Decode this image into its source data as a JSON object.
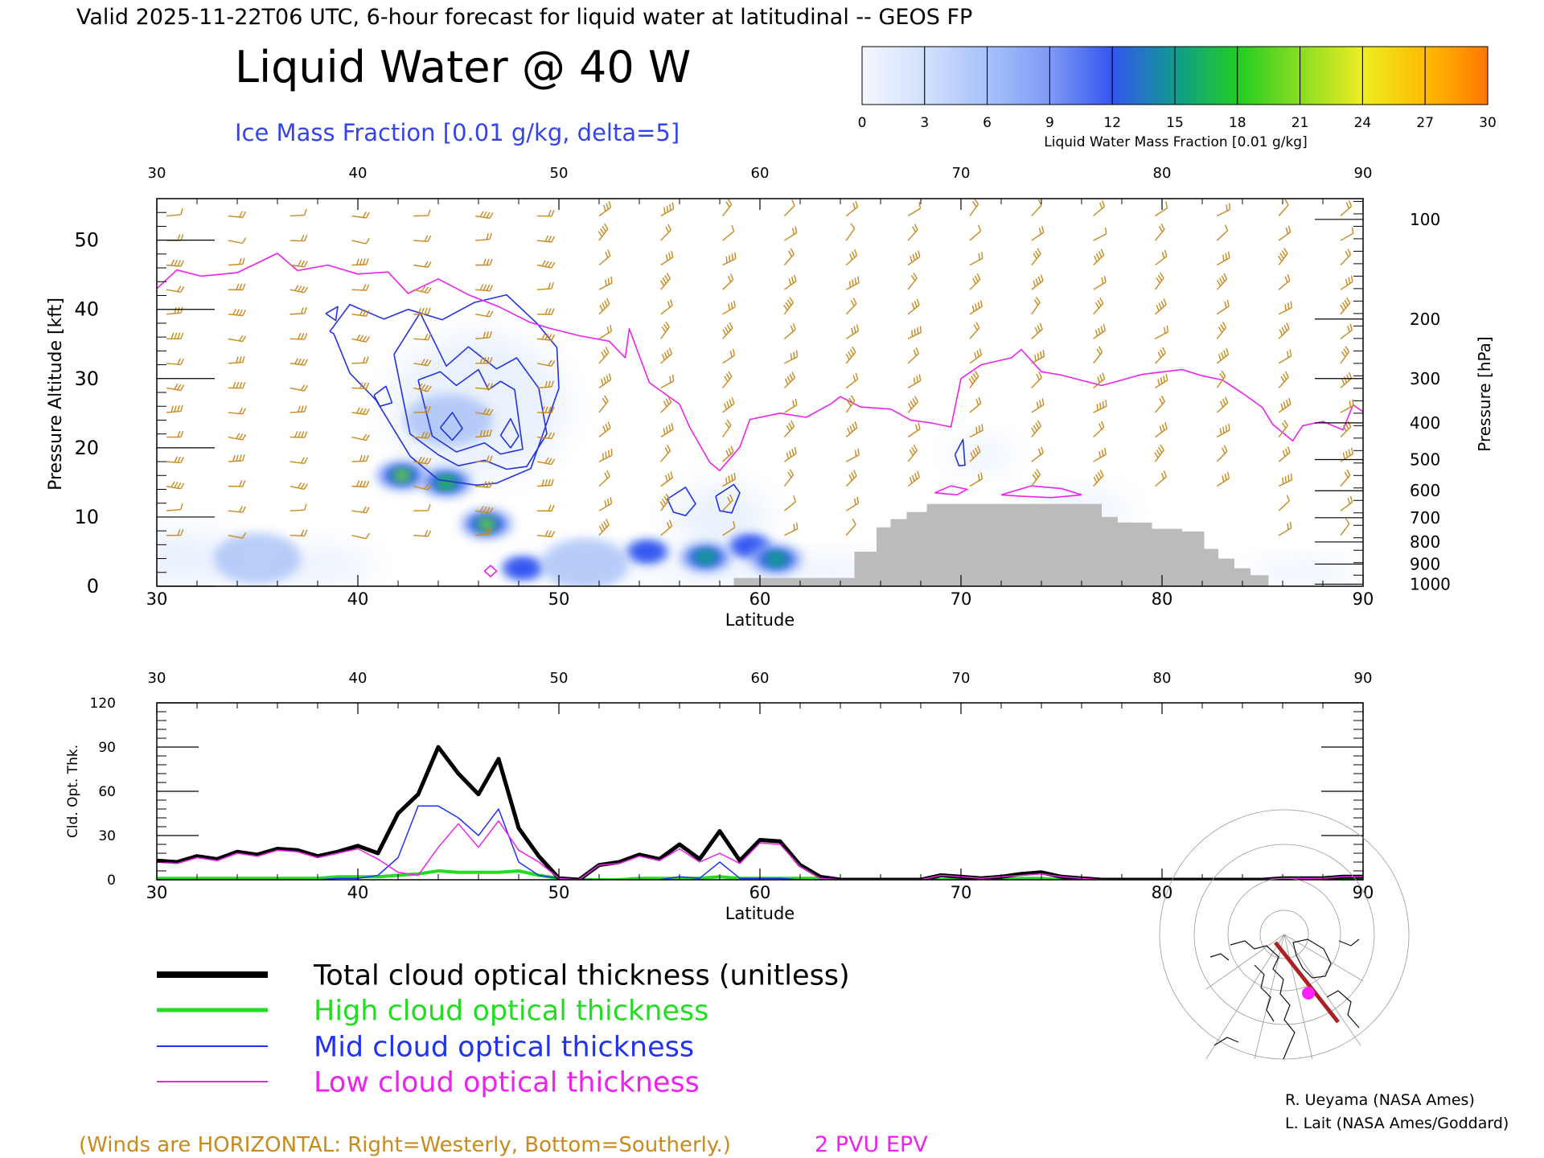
{
  "header": {
    "valid_line": "Valid 2025-11-22T06 UTC, 6-hour forecast for liquid water at latitudinal -- GEOS FP",
    "title": "Liquid Water @ 40 W",
    "subtitle": "Ice Mass Fraction [0.01 g/kg, delta=5]"
  },
  "colorbar": {
    "label": "Liquid Water Mass Fraction [0.01 g/kg]",
    "ticks": [
      "0",
      "3",
      "6",
      "9",
      "12",
      "15",
      "18",
      "21",
      "24",
      "27",
      "30"
    ],
    "colors": [
      "#f4f7ff",
      "#d2e0fb",
      "#a6c2fa",
      "#7f9af6",
      "#3355f0",
      "#119a90",
      "#22cc22",
      "#88dd22",
      "#eeee22",
      "#ffbb00",
      "#ff7700"
    ]
  },
  "chart_data": [
    {
      "type": "heatmap",
      "title": "Liquid Water @ 40 W",
      "xlabel": "Latitude",
      "ylabel": "Pressure Altitude [kft]",
      "y2label": "Pressure [hPa]",
      "xlim": [
        30,
        90
      ],
      "ylim": [
        0,
        56
      ],
      "x_ticks": [
        "30",
        "40",
        "50",
        "60",
        "70",
        "80",
        "90"
      ],
      "y_ticks": [
        "0",
        "10",
        "20",
        "30",
        "40",
        "50"
      ],
      "pressure_ticks": [
        {
          "label": "100",
          "alt": 53
        },
        {
          "label": "200",
          "alt": 38.6
        },
        {
          "label": "300",
          "alt": 30
        },
        {
          "label": "400",
          "alt": 23.6
        },
        {
          "label": "500",
          "alt": 18.3
        },
        {
          "label": "600",
          "alt": 13.8
        },
        {
          "label": "700",
          "alt": 9.9
        },
        {
          "label": "800",
          "alt": 6.4
        },
        {
          "label": "900",
          "alt": 3.2
        },
        {
          "label": "1000",
          "alt": 0.3
        }
      ],
      "liquid_water_blobs": [
        {
          "lat": 42.2,
          "alt": 16.0,
          "value": 21
        },
        {
          "lat": 44.4,
          "alt": 15.0,
          "value": 18
        },
        {
          "lat": 46.4,
          "alt": 9.0,
          "value": 20
        },
        {
          "lat": 48.2,
          "alt": 2.6,
          "value": 12
        },
        {
          "lat": 54.4,
          "alt": 5.0,
          "value": 12
        },
        {
          "lat": 57.3,
          "alt": 4.2,
          "value": 15
        },
        {
          "lat": 59.5,
          "alt": 5.8,
          "value": 12
        },
        {
          "lat": 60.8,
          "alt": 3.9,
          "value": 16
        },
        {
          "lat": 35.0,
          "alt": 4.0,
          "value": 4
        },
        {
          "lat": 44.5,
          "alt": 24.0,
          "value": 6
        },
        {
          "lat": 51.3,
          "alt": 3.2,
          "value": 5
        }
      ],
      "ice_contours": [
        {
          "lat": [
            38.6,
            39.6,
            41.3,
            42.5,
            44.2,
            45.8,
            47.4,
            48.9,
            49.9,
            50.0,
            48.6,
            46.9,
            45.9,
            44.0,
            42.6,
            40.9,
            39.6,
            38.8,
            38.6
          ],
          "alt": [
            36.8,
            40.7,
            38.6,
            40.0,
            38.5,
            41.0,
            42.1,
            38.0,
            34.5,
            28.6,
            17.0,
            14.9,
            14.6,
            15.4,
            18.8,
            26.9,
            30.8,
            36.5,
            36.8
          ]
        },
        {
          "lat": [
            41.8,
            43.1,
            44.4,
            45.5,
            46.9,
            47.9,
            49.0,
            49.4,
            48.4,
            47.4,
            46.3,
            45.0,
            44.0,
            42.6,
            41.8
          ],
          "alt": [
            33.5,
            39.5,
            31.8,
            34.6,
            31.4,
            33.0,
            28.6,
            22.0,
            17.3,
            16.9,
            18.2,
            17.4,
            19.0,
            22.0,
            33.5
          ]
        },
        {
          "lat": [
            43.0,
            44.1,
            44.9,
            46.0,
            46.5,
            47.1,
            47.8,
            48.2,
            47.1,
            46.3,
            44.9,
            43.7,
            43.0
          ],
          "alt": [
            29.8,
            31.0,
            29.0,
            31.3,
            28.4,
            29.6,
            28.4,
            19.8,
            19.1,
            20.7,
            19.4,
            21.7,
            29.8
          ]
        },
        {
          "lat": [
            44.1,
            44.7,
            45.2,
            44.7,
            44.1
          ],
          "alt": [
            22.9,
            25.1,
            22.8,
            21.1,
            22.9
          ]
        },
        {
          "lat": [
            47.1,
            47.6,
            48.0,
            47.6,
            47.1
          ],
          "alt": [
            21.8,
            24.2,
            21.7,
            20.0,
            21.8
          ]
        },
        {
          "lat": [
            38.4,
            39.0,
            38.9,
            38.4
          ],
          "alt": [
            39.4,
            40.4,
            38.4,
            39.4
          ]
        },
        {
          "lat": [
            40.8,
            41.4,
            41.7,
            41.1,
            40.8
          ],
          "alt": [
            27.6,
            28.9,
            26.5,
            26.0,
            27.6
          ]
        },
        {
          "lat": [
            55.4,
            56.3,
            56.8,
            56.3,
            55.7,
            55.4
          ],
          "alt": [
            12.6,
            14.3,
            11.9,
            10.2,
            10.7,
            12.6
          ]
        },
        {
          "lat": [
            57.8,
            58.7,
            59.0,
            58.6,
            58.0,
            57.8
          ],
          "alt": [
            13.0,
            14.7,
            13.5,
            10.6,
            10.9,
            13.0
          ]
        },
        {
          "lat": [
            69.7,
            70.1,
            70.2,
            69.9,
            69.7
          ],
          "alt": [
            19.0,
            21.2,
            17.5,
            17.4,
            19.0
          ]
        }
      ],
      "epv_2pvu": {
        "lat": [
          30.0,
          31.0,
          32.2,
          34.0,
          36.0,
          37.0,
          38.5,
          40.0,
          41.5,
          42.5,
          44.0,
          45.5,
          47.0,
          48.5,
          49.5,
          51.0,
          52.5,
          53.3,
          53.5,
          54.5,
          56.0,
          56.5,
          57.5,
          58.0,
          59.0,
          59.5,
          61.0,
          62.3,
          63.5,
          64.0,
          65.0,
          66.5,
          67.5,
          68.5,
          69.5,
          70.0,
          71.0,
          72.5,
          73.0,
          74.0,
          75.0,
          77.0,
          79.0,
          81.0,
          82.0,
          83.0,
          84.0,
          85.0,
          85.5,
          86.5,
          87.0,
          88.0,
          89.0,
          89.5,
          90.0
        ],
        "alt": [
          43.0,
          45.7,
          44.8,
          45.3,
          48.1,
          45.6,
          46.4,
          45.1,
          45.4,
          42.3,
          44.4,
          42.1,
          40.4,
          38.2,
          37.3,
          36.2,
          35.4,
          33.0,
          37.2,
          29.4,
          26.3,
          23.0,
          17.9,
          16.7,
          20.1,
          24.1,
          25.0,
          24.4,
          26.3,
          27.4,
          25.9,
          25.6,
          24.0,
          23.6,
          23.0,
          30.0,
          32.0,
          33.0,
          34.2,
          31.0,
          30.5,
          29.0,
          30.6,
          31.3,
          30.4,
          29.8,
          27.9,
          25.8,
          23.4,
          21.0,
          23.2,
          23.8,
          22.6,
          26.2,
          25.2
        ]
      },
      "terrain": {
        "lat": [
          58.7,
          64.7,
          64.7,
          65.8,
          65.8,
          66.5,
          66.5,
          67.3,
          67.3,
          68.3,
          68.3,
          77.0,
          77.0,
          77.8,
          77.8,
          79.5,
          79.5,
          81.0,
          81.0,
          82.1,
          82.1,
          82.8,
          82.8,
          83.6,
          83.6,
          84.4,
          84.4,
          85.3,
          85.3
        ],
        "alt": [
          1.2,
          1.2,
          5.0,
          5.0,
          8.5,
          8.5,
          9.7,
          9.7,
          10.7,
          10.7,
          11.9,
          11.9,
          10.0,
          10.0,
          9.2,
          9.2,
          8.3,
          8.3,
          7.9,
          7.9,
          5.4,
          5.4,
          4.0,
          4.0,
          2.6,
          2.6,
          1.6,
          1.6,
          0
        ]
      }
    },
    {
      "type": "line",
      "xlabel": "Latitude",
      "ylabel": "Cld. Opt. Thk.",
      "xlim": [
        30,
        90
      ],
      "ylim": [
        0,
        120
      ],
      "x_ticks": [
        "30",
        "40",
        "50",
        "60",
        "70",
        "80",
        "90"
      ],
      "y_ticks": [
        "0",
        "30",
        "60",
        "90",
        "120"
      ],
      "x": [
        30,
        31,
        32,
        33,
        34,
        35,
        36,
        37,
        38,
        39,
        40,
        41,
        42,
        43,
        44,
        45,
        46,
        47,
        48,
        49,
        50,
        51,
        52,
        53,
        54,
        55,
        56,
        57,
        58,
        59,
        60,
        61,
        62,
        63,
        64,
        65,
        66,
        67,
        68,
        69,
        70,
        71,
        72,
        73,
        74,
        75,
        76,
        77,
        78,
        79,
        80,
        81,
        82,
        83,
        84,
        85,
        86,
        87,
        88,
        89,
        90
      ],
      "series": [
        {
          "name": "Total cloud optical thickness (unitless)",
          "values": [
            13,
            12,
            16,
            14,
            19,
            17,
            21,
            20,
            16,
            19,
            23,
            18,
            45,
            58,
            90,
            72,
            58,
            82,
            35,
            16,
            1,
            0,
            10,
            12,
            17,
            14,
            24,
            14,
            33,
            13,
            27,
            26,
            10,
            2,
            0,
            0,
            0,
            0,
            0,
            3,
            2,
            1,
            2,
            4,
            5,
            2,
            1,
            0,
            0,
            0,
            0,
            0,
            0,
            0,
            0,
            0,
            1,
            1,
            1,
            2,
            2
          ]
        },
        {
          "name": "High cloud optical thickness",
          "values": [
            1,
            1,
            1,
            1,
            1,
            1,
            1,
            1,
            1,
            2,
            2,
            2,
            3,
            4,
            6,
            5,
            5,
            5,
            6,
            3,
            1,
            0,
            0,
            0,
            1,
            1,
            1,
            1,
            2,
            1,
            1,
            1,
            1,
            1,
            0,
            0,
            0,
            0,
            0,
            0,
            0,
            0,
            0,
            1,
            1,
            0,
            0,
            0,
            0,
            0,
            0,
            0,
            0,
            0,
            0,
            0,
            0,
            0,
            0,
            0,
            0
          ]
        },
        {
          "name": "Mid cloud optical thickness",
          "values": [
            0,
            0,
            0,
            0,
            0,
            0,
            0,
            0,
            0,
            1,
            1,
            3,
            15,
            50,
            50,
            42,
            30,
            48,
            12,
            3,
            1,
            0,
            0,
            0,
            0,
            0,
            2,
            1,
            12,
            1,
            1,
            1,
            0,
            0,
            0,
            0,
            0,
            0,
            0,
            0,
            0,
            0,
            0,
            0,
            0,
            0,
            0,
            0,
            0,
            0,
            0,
            0,
            0,
            0,
            0,
            0,
            0,
            0,
            0,
            0,
            0
          ]
        },
        {
          "name": "Low cloud optical thickness",
          "values": [
            12,
            11,
            15,
            13,
            18,
            16,
            20,
            19,
            15,
            18,
            21,
            14,
            5,
            3,
            22,
            38,
            22,
            40,
            20,
            12,
            1,
            0,
            10,
            11,
            16,
            13,
            21,
            12,
            18,
            11,
            25,
            24,
            9,
            1,
            0,
            0,
            0,
            0,
            0,
            3,
            2,
            1,
            2,
            3,
            4,
            2,
            1,
            0,
            0,
            0,
            0,
            0,
            0,
            0,
            0,
            0,
            1,
            1,
            1,
            2,
            2
          ]
        }
      ]
    }
  ],
  "legend": {
    "items": [
      {
        "label": "Total cloud optical thickness (unitless)",
        "color": "#000000"
      },
      {
        "label": "High cloud optical thickness",
        "color": "#22dd22"
      },
      {
        "label": "Mid cloud optical thickness",
        "color": "#2233ee"
      },
      {
        "label": "Low cloud optical thickness",
        "color": "#ee22ee"
      }
    ]
  },
  "footer": {
    "winds_note": "(Winds are HORIZONTAL: Right=Westerly, Bottom=Southerly.)",
    "epv_label": "2 PVU EPV",
    "credit_1": "R. Ueyama (NASA Ames)",
    "credit_2": "L. Lait (NASA Ames/Goddard)"
  },
  "colors": {
    "ice_contour": "#2233dd",
    "epv": "#ee22ee",
    "terrain": "#bbbbbb",
    "wind_barb": "#c88a1e",
    "track": "#aa2222",
    "marker": "#ff22ff"
  }
}
